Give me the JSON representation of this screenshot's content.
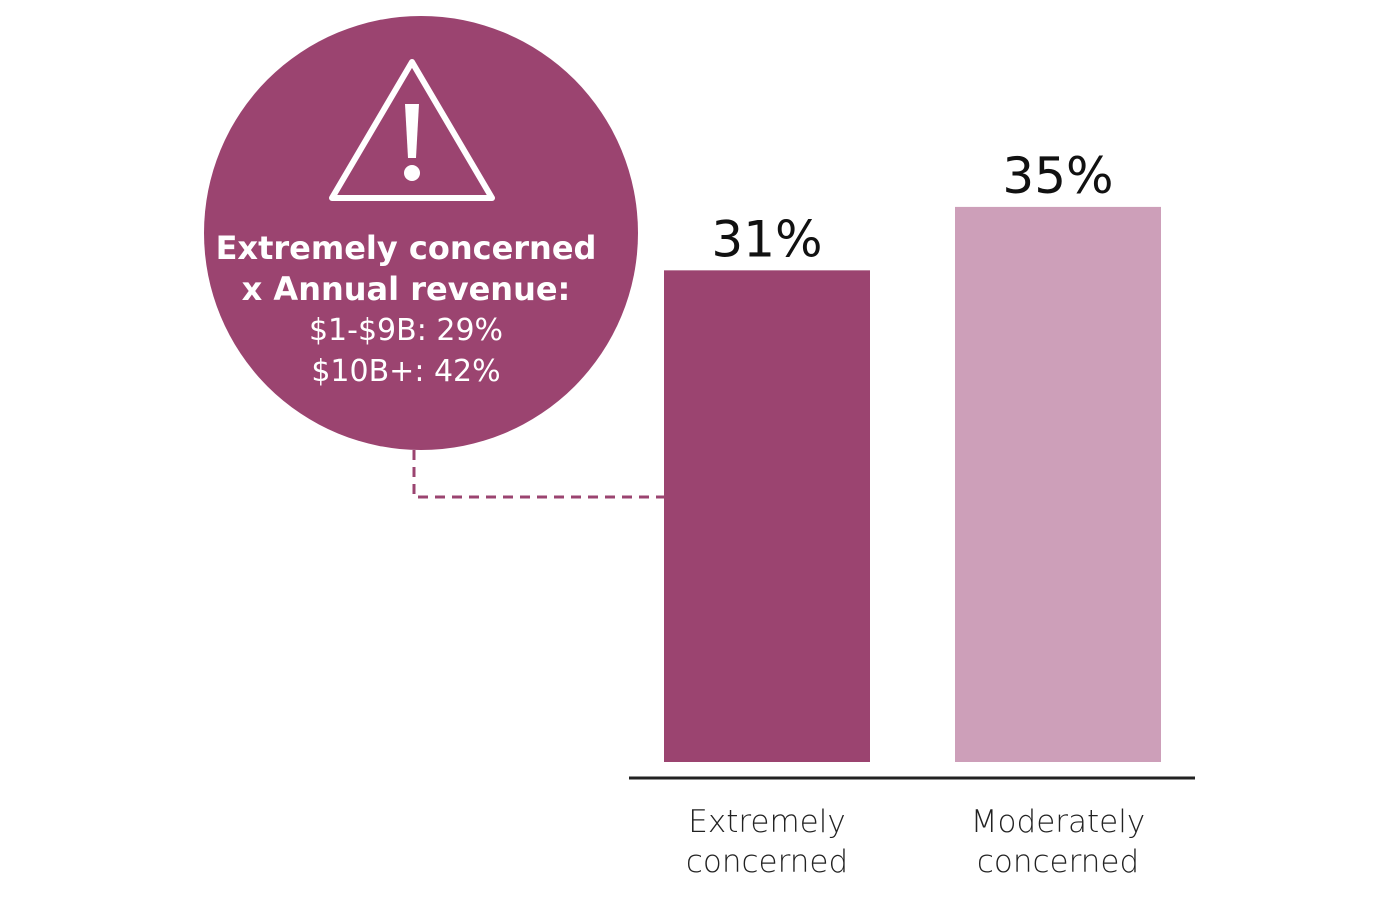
{
  "chart_data": {
    "type": "bar",
    "categories": [
      [
        "Extremely",
        "concerned"
      ],
      [
        "Moderately",
        "concerned"
      ]
    ],
    "values": [
      31,
      35
    ],
    "value_labels": [
      "31%",
      "35%"
    ],
    "ylim": [
      0,
      50
    ],
    "colors": [
      "#9b4470",
      "#cd9fb9"
    ],
    "grid": false
  },
  "callout": {
    "title": "Extremely concerned\nx Annual revenue:",
    "lines": [
      "$1-$9B: 29%",
      "$10B+: 42%"
    ],
    "icon": "warning-triangle-icon",
    "color": "#9b4470"
  }
}
